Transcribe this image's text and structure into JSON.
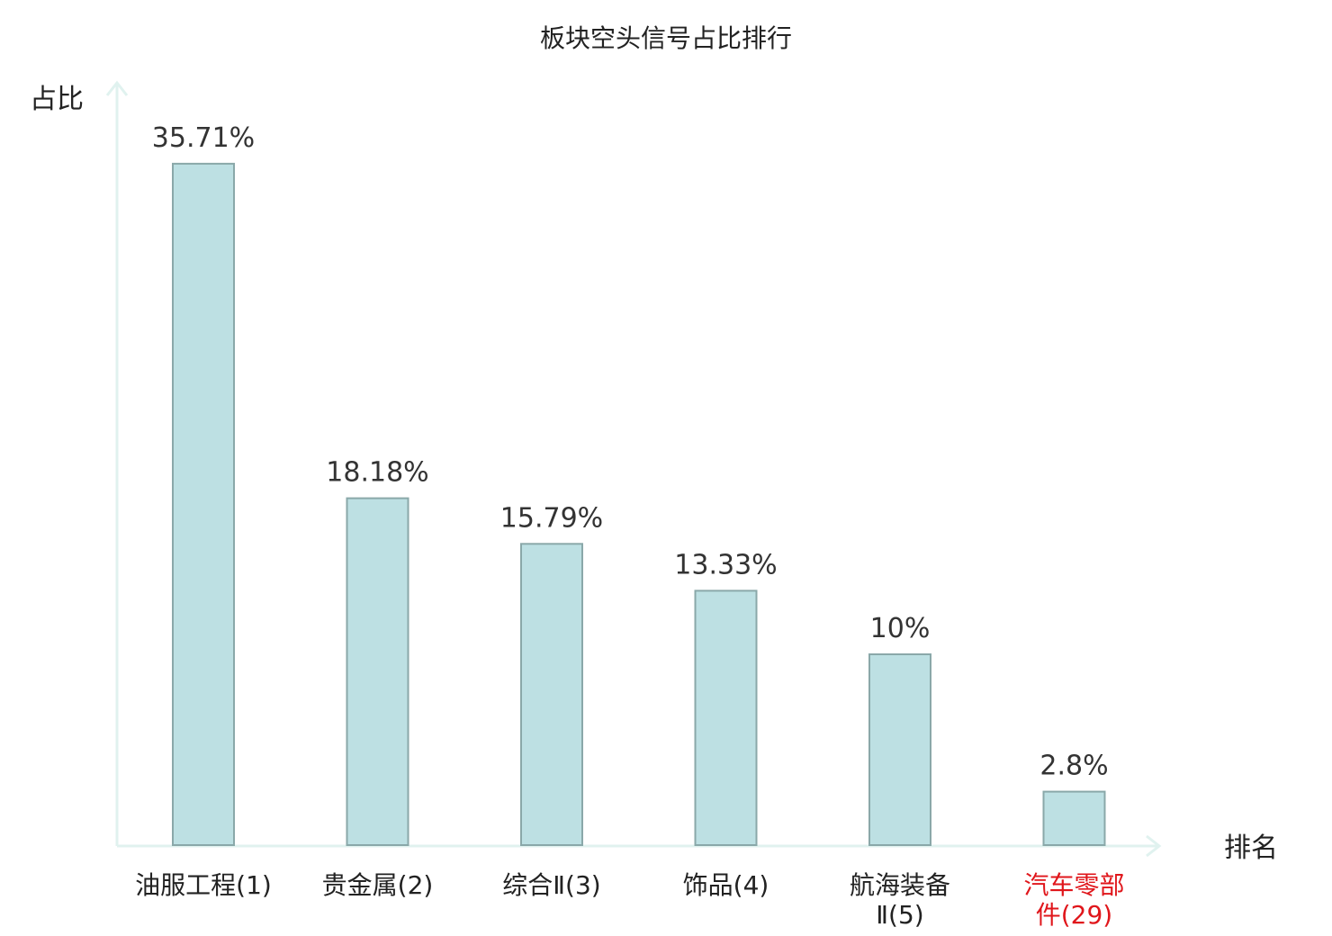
{
  "colors": {
    "bar_fill": "#bde0e3",
    "bar_stroke": "#8aa8a9",
    "axis": "#e0f2ef",
    "text": "#222222",
    "value_text": "#333333",
    "highlight": "#e0161b"
  },
  "chart_data": {
    "type": "bar",
    "title": "板块空头信号占比排行",
    "ylabel": "占比",
    "xlabel": "排名",
    "ylim": [
      0,
      40
    ],
    "grid": false,
    "categories": [
      {
        "name": "油服工程",
        "rank": "(1)",
        "lines": [
          "油服工程(1)"
        ],
        "highlight": false
      },
      {
        "name": "贵金属",
        "rank": "(2)",
        "lines": [
          "贵金属(2)"
        ],
        "highlight": false
      },
      {
        "name": "综合Ⅱ",
        "rank": "(3)",
        "lines": [
          "综合Ⅱ(3)"
        ],
        "highlight": false
      },
      {
        "name": "饰品",
        "rank": "(4)",
        "lines": [
          "饰品(4)"
        ],
        "highlight": false
      },
      {
        "name": "航海装备Ⅱ",
        "rank": "(5)",
        "lines": [
          "航海装备",
          "Ⅱ(5)"
        ],
        "highlight": false
      },
      {
        "name": "汽车零部件",
        "rank": "(29)",
        "lines": [
          "汽车零部",
          "件(29)"
        ],
        "highlight": true
      }
    ],
    "values": [
      35.71,
      18.18,
      15.79,
      13.33,
      10,
      2.8
    ],
    "value_labels": [
      "35.71%",
      "18.18%",
      "15.79%",
      "13.33%",
      "10%",
      "2.8%"
    ]
  }
}
